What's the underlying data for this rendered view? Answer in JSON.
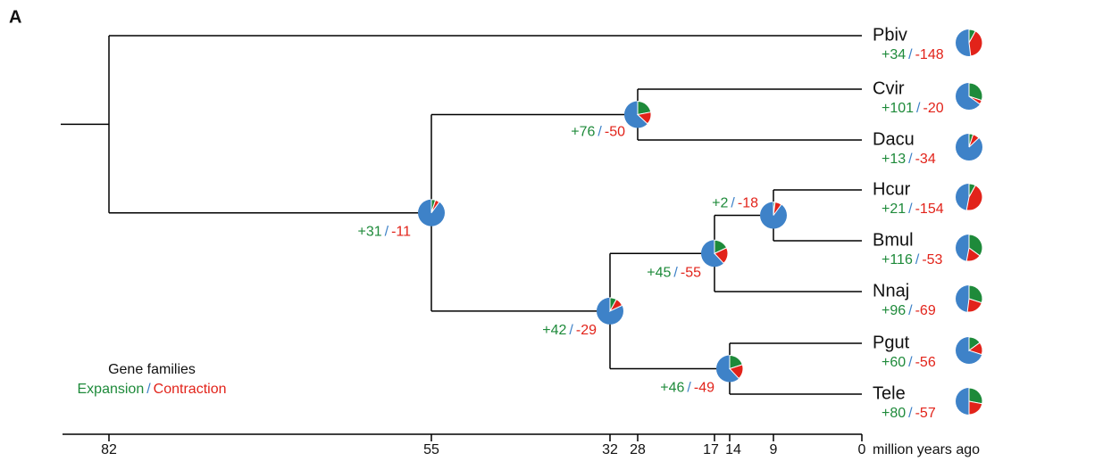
{
  "panel": "A",
  "leaves": [
    {
      "name": "Pbiv",
      "gain": "+34",
      "loss": "-148",
      "pie": [
        8,
        40
      ]
    },
    {
      "name": "Cvir",
      "gain": "+101",
      "loss": "-20",
      "pie": [
        30,
        5
      ]
    },
    {
      "name": "Dacu",
      "gain": "+13",
      "loss": "-34",
      "pie": [
        5,
        8
      ]
    },
    {
      "name": "Hcur",
      "gain": "+21",
      "loss": "-154",
      "pie": [
        8,
        45
      ]
    },
    {
      "name": "Bmul",
      "gain": "+116",
      "loss": "-53",
      "pie": [
        35,
        18
      ]
    },
    {
      "name": "Nnaj",
      "gain": "+96",
      "loss": "-69",
      "pie": [
        30,
        22
      ]
    },
    {
      "name": "Pgut",
      "gain": "+60",
      "loss": "-56",
      "pie": [
        15,
        15
      ]
    },
    {
      "name": "Tele",
      "gain": "+80",
      "loss": "-57",
      "pie": [
        28,
        22
      ]
    }
  ],
  "nodes": [
    {
      "gain": "+2",
      "loss": "-18",
      "pie": [
        2,
        8
      ]
    },
    {
      "gain": "+45",
      "loss": "-55",
      "pie": [
        18,
        20
      ]
    },
    {
      "gain": "+46",
      "loss": "-49",
      "pie": [
        20,
        18
      ]
    },
    {
      "gain": "+42",
      "loss": "-29",
      "pie": [
        8,
        10
      ]
    },
    {
      "gain": "+76",
      "loss": "-50",
      "pie": [
        22,
        15
      ]
    },
    {
      "gain": "+31",
      "loss": "-11",
      "pie": [
        5,
        5
      ]
    }
  ],
  "axis": {
    "ticks": [
      82,
      55,
      32,
      28,
      17,
      14,
      9,
      0
    ],
    "label": "million years ago"
  },
  "legend": {
    "title": "Gene families",
    "expansion": "Expansion",
    "separator": "/",
    "contraction": "Contraction"
  }
}
